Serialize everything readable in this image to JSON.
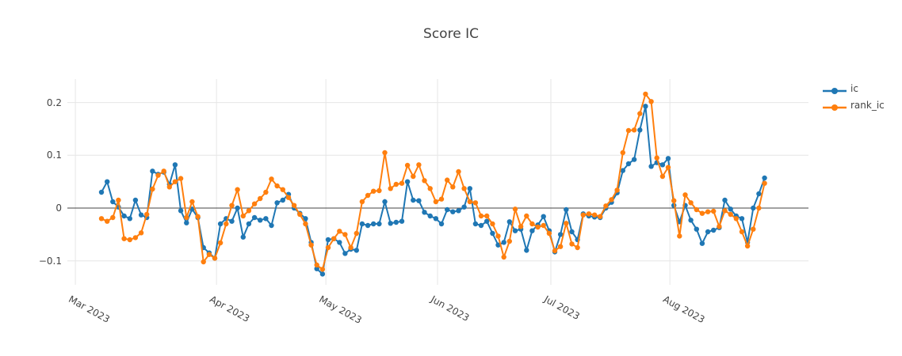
{
  "chart_data": {
    "type": "line",
    "title": "Score IC",
    "mode": "lines+markers",
    "grid": true,
    "legend_position": "top-right-outside",
    "background_color": "#ffffff",
    "grid_color": "#e6e6e6",
    "zero_line_color": "#444444",
    "text_color": "#444444",
    "y_ticks": [
      0.2,
      0.1,
      0,
      -0.1
    ],
    "y_tick_labels": [
      "0.2",
      "0.1",
      "0",
      "−0.1"
    ],
    "ylim": [
      -0.145,
      0.245
    ],
    "x_ticks": [
      {
        "label": "Mar 2023",
        "i": -4.6
      },
      {
        "label": "Apr 2023",
        "i": 20.3
      },
      {
        "label": "May 2023",
        "i": 39.6
      },
      {
        "label": "Jun 2023",
        "i": 59.3
      },
      {
        "label": "Jul 2023",
        "i": 79.3
      },
      {
        "label": "Aug 2023",
        "i": 100.3
      }
    ],
    "series": [
      {
        "name": "ic",
        "color": "#1f77b4",
        "values": [
          0.03,
          0.05,
          0.012,
          0.002,
          -0.015,
          -0.02,
          0.015,
          -0.013,
          -0.018,
          0.07,
          0.064,
          0.068,
          0.045,
          0.082,
          -0.005,
          -0.028,
          -0.002,
          -0.018,
          -0.075,
          -0.085,
          -0.095,
          -0.03,
          -0.02,
          -0.025,
          0.0,
          -0.055,
          -0.03,
          -0.018,
          -0.023,
          -0.02,
          -0.033,
          0.01,
          0.015,
          0.026,
          0.0,
          -0.01,
          -0.02,
          -0.065,
          -0.115,
          -0.125,
          -0.06,
          -0.058,
          -0.065,
          -0.086,
          -0.078,
          -0.08,
          -0.03,
          -0.033,
          -0.03,
          -0.03,
          0.012,
          -0.029,
          -0.027,
          -0.025,
          0.05,
          0.015,
          0.014,
          -0.008,
          -0.015,
          -0.02,
          -0.03,
          -0.003,
          -0.007,
          -0.005,
          0.002,
          0.037,
          -0.03,
          -0.033,
          -0.025,
          -0.048,
          -0.07,
          -0.065,
          -0.026,
          -0.043,
          -0.04,
          -0.08,
          -0.043,
          -0.032,
          -0.016,
          -0.043,
          -0.083,
          -0.05,
          -0.003,
          -0.045,
          -0.06,
          -0.011,
          -0.015,
          -0.017,
          -0.018,
          0.0,
          0.011,
          0.029,
          0.071,
          0.084,
          0.092,
          0.148,
          0.193,
          0.079,
          0.086,
          0.082,
          0.094,
          0.005,
          -0.026,
          0.005,
          -0.023,
          -0.04,
          -0.067,
          -0.045,
          -0.042,
          -0.037,
          0.015,
          -0.002,
          -0.015,
          -0.02,
          -0.065,
          0.0,
          0.027,
          0.057
        ]
      },
      {
        "name": "rank_ic",
        "color": "#ff7f0e",
        "values": [
          -0.02,
          -0.025,
          -0.018,
          0.015,
          -0.058,
          -0.06,
          -0.056,
          -0.047,
          -0.012,
          0.036,
          0.062,
          0.07,
          0.04,
          0.05,
          0.056,
          -0.018,
          0.012,
          -0.016,
          -0.102,
          -0.088,
          -0.095,
          -0.066,
          -0.03,
          0.005,
          0.035,
          -0.015,
          -0.005,
          0.008,
          0.018,
          0.03,
          0.055,
          0.042,
          0.035,
          0.02,
          0.005,
          -0.012,
          -0.03,
          -0.07,
          -0.108,
          -0.116,
          -0.075,
          -0.058,
          -0.044,
          -0.05,
          -0.075,
          -0.048,
          0.012,
          0.024,
          0.032,
          0.033,
          0.105,
          0.037,
          0.045,
          0.047,
          0.081,
          0.06,
          0.082,
          0.052,
          0.037,
          0.012,
          0.017,
          0.053,
          0.04,
          0.069,
          0.037,
          0.012,
          0.01,
          -0.015,
          -0.015,
          -0.03,
          -0.053,
          -0.093,
          -0.063,
          -0.002,
          -0.035,
          -0.015,
          -0.03,
          -0.036,
          -0.033,
          -0.048,
          -0.081,
          -0.073,
          -0.029,
          -0.068,
          -0.075,
          -0.013,
          -0.011,
          -0.013,
          -0.016,
          0.004,
          0.016,
          0.034,
          0.105,
          0.147,
          0.148,
          0.179,
          0.216,
          0.202,
          0.095,
          0.06,
          0.077,
          0.014,
          -0.053,
          0.025,
          0.01,
          -0.003,
          -0.01,
          -0.007,
          -0.006,
          -0.035,
          -0.005,
          -0.012,
          -0.02,
          -0.045,
          -0.072,
          -0.04,
          0.0,
          0.047
        ]
      }
    ]
  }
}
